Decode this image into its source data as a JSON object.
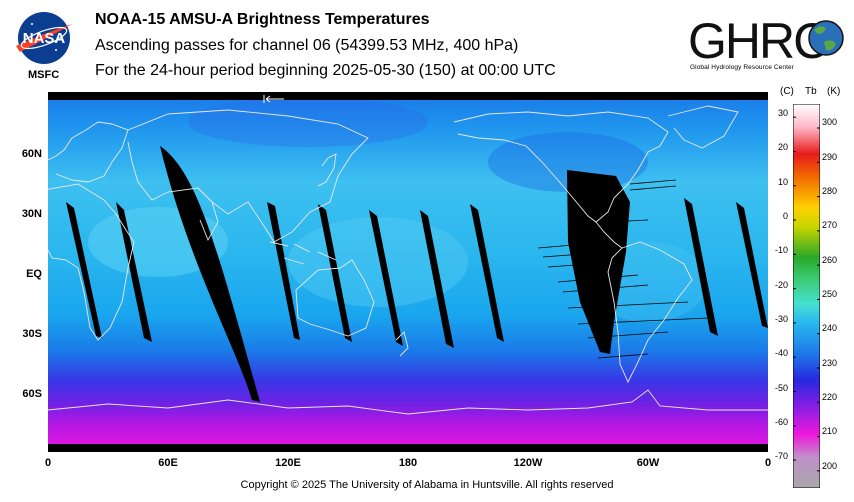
{
  "header": {
    "nasa_logo_text": "NASA",
    "msfc_label": "MSFC",
    "title": "NOAA-15 AMSU-A Brightness Temperatures",
    "subtitle": "Ascending passes for channel 06 (54399.53 MHz, 400 hPa)",
    "period": "For the 24-hour period beginning 2025-05-30 (150) at 00:00 UTC",
    "ghrc_logo_text": "GHRC",
    "ghrc_full_name": "Global Hydrology Resource Center"
  },
  "map": {
    "lat_labels": [
      "60N",
      "30N",
      "EQ",
      "30S",
      "60S"
    ],
    "lon_labels": [
      "0",
      "60E",
      "120E",
      "180",
      "120W",
      "60W",
      "0"
    ],
    "colors": {
      "land_outline": "#e8e8e8",
      "no_data": "#000000"
    }
  },
  "colorbar": {
    "unit_c": "(C)",
    "unit_tb": "Tb",
    "unit_k": "(K)",
    "celsius_ticks": [
      "30",
      "20",
      "10",
      "0",
      "-10",
      "-20",
      "-30",
      "-40",
      "-50",
      "-60",
      "-70"
    ],
    "kelvin_ticks": [
      "300",
      "290",
      "280",
      "270",
      "260",
      "250",
      "240",
      "230",
      "220",
      "210",
      "200"
    ],
    "kelvin_range": [
      195,
      307
    ]
  },
  "footer": {
    "copyright": "Copyright © 2025 The University of Alabama in Huntsville.  All rights reserved"
  }
}
